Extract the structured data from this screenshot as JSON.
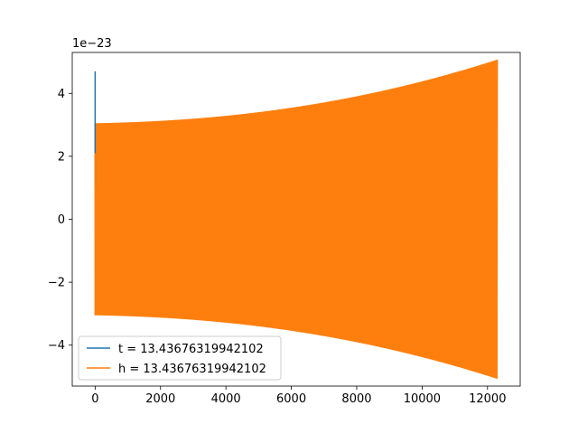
{
  "chart_data": {
    "type": "line",
    "title": "",
    "xlabel": "",
    "ylabel": "",
    "y_offset_label": "1e−23",
    "xlim": [
      -700,
      13000
    ],
    "ylim": [
      -5.3,
      5.3
    ],
    "x_ticks": [
      0,
      2000,
      4000,
      6000,
      8000,
      10000,
      12000
    ],
    "x_tick_labels": [
      "0",
      "2000",
      "4000",
      "6000",
      "8000",
      "10000",
      "12000"
    ],
    "y_ticks": [
      -4,
      -2,
      0,
      2,
      4
    ],
    "y_tick_labels": [
      "−4",
      "−2",
      "0",
      "2",
      "4"
    ],
    "grid": false,
    "legend_position": "lower-left",
    "series": [
      {
        "name": "t = 13.43676319942102",
        "color": "#1f77b4",
        "description": "spike near x=0",
        "x": [
          0,
          0,
          0,
          0
        ],
        "y": [
          1.0,
          4.7,
          2.1,
          1.0
        ]
      },
      {
        "name": "h = 13.43676319942102",
        "color": "#ff7f0e",
        "description": "dense oscillation with growing envelope",
        "x_start": 0,
        "x_end": 12300,
        "envelope_start": 3.05,
        "envelope_mid": 3.5,
        "envelope_end": 4.8
      }
    ]
  }
}
